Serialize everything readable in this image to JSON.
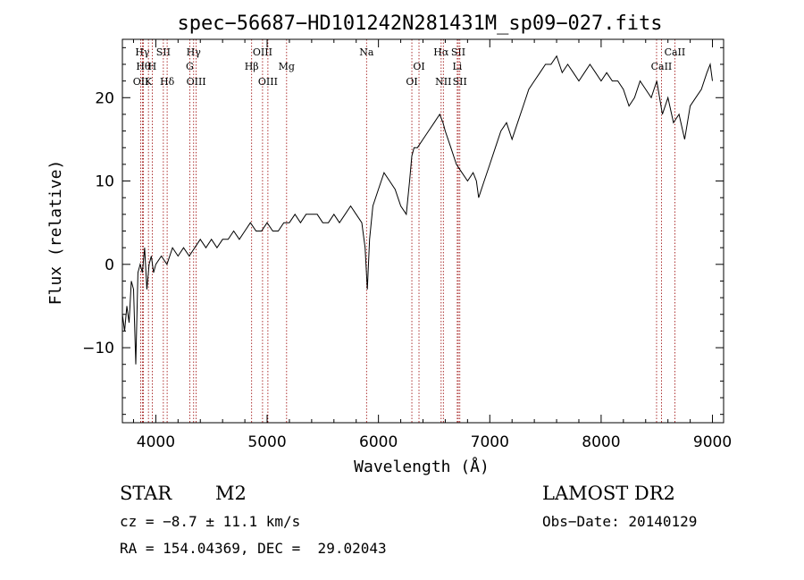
{
  "chart_data": {
    "type": "line",
    "title": "spec−56687−HD101242N281431M_sp09−027.fits",
    "xlabel": "Wavelength (Å)",
    "ylabel": "Flux (relative)",
    "xlim": [
      3700,
      9100
    ],
    "ylim": [
      -19,
      27
    ],
    "xticks": [
      4000,
      5000,
      6000,
      7000,
      8000,
      9000
    ],
    "yticks": [
      -10,
      0,
      10,
      20
    ],
    "line_color": "#000000",
    "marker_color": "#990000",
    "series": [
      {
        "x": [
          3700,
          3720,
          3740,
          3760,
          3780,
          3800,
          3820,
          3840,
          3860,
          3880,
          3900,
          3920,
          3940,
          3960,
          3980,
          4000,
          4050,
          4100,
          4150,
          4200,
          4250,
          4300,
          4350,
          4400,
          4450,
          4500,
          4550,
          4600,
          4650,
          4700,
          4750,
          4800,
          4850,
          4900,
          4950,
          5000,
          5050,
          5100,
          5150,
          5200,
          5250,
          5300,
          5350,
          5400,
          5450,
          5500,
          5550,
          5600,
          5650,
          5700,
          5750,
          5800,
          5850,
          5880,
          5900,
          5920,
          5950,
          6000,
          6050,
          6100,
          6150,
          6200,
          6250,
          6280,
          6300,
          6320,
          6350,
          6400,
          6450,
          6500,
          6550,
          6580,
          6600,
          6650,
          6700,
          6750,
          6800,
          6850,
          6880,
          6900,
          6950,
          7000,
          7050,
          7100,
          7150,
          7200,
          7250,
          7300,
          7350,
          7400,
          7450,
          7500,
          7550,
          7600,
          7650,
          7700,
          7750,
          7800,
          7850,
          7900,
          7950,
          8000,
          8050,
          8100,
          8150,
          8200,
          8250,
          8300,
          8350,
          8400,
          8450,
          8500,
          8550,
          8600,
          8650,
          8700,
          8750,
          8800,
          8850,
          8900,
          8950,
          8980,
          9000
        ],
        "y": [
          -6,
          -8,
          -5,
          -7,
          -2,
          -3,
          -12,
          -1,
          0,
          -1,
          2,
          -3,
          0,
          1,
          -1,
          0,
          1,
          0,
          2,
          1,
          2,
          1,
          2,
          3,
          2,
          3,
          2,
          3,
          3,
          4,
          3,
          4,
          5,
          4,
          4,
          5,
          4,
          4,
          5,
          5,
          6,
          5,
          6,
          6,
          6,
          5,
          5,
          6,
          5,
          6,
          7,
          6,
          5,
          2,
          -3,
          3,
          7,
          9,
          11,
          10,
          9,
          7,
          6,
          10,
          13,
          14,
          14,
          15,
          16,
          17,
          18,
          17,
          16,
          14,
          12,
          11,
          10,
          11,
          10,
          8,
          10,
          12,
          14,
          16,
          17,
          15,
          17,
          19,
          21,
          22,
          23,
          24,
          24,
          25,
          23,
          24,
          23,
          22,
          23,
          24,
          23,
          22,
          23,
          22,
          22,
          21,
          19,
          20,
          22,
          21,
          20,
          22,
          18,
          20,
          17,
          18,
          15,
          19,
          20,
          21,
          23,
          24,
          22
        ]
      }
    ],
    "line_markers": [
      {
        "label": "Hγ",
        "wl": 3880,
        "row": 1
      },
      {
        "label": "Hθ",
        "wl": 3888,
        "row": 2
      },
      {
        "label": "OII",
        "wl": 3865,
        "row": 3
      },
      {
        "label": "SII",
        "wl": 4068,
        "row": 1
      },
      {
        "label": "H",
        "wl": 3968,
        "row": 2
      },
      {
        "label": "K",
        "wl": 3934,
        "row": 3
      },
      {
        "label": "Hδ",
        "wl": 4102,
        "row": 3
      },
      {
        "label": "Hγ",
        "wl": 4340,
        "row": 1
      },
      {
        "label": "G",
        "wl": 4305,
        "row": 2
      },
      {
        "label": "OIII",
        "wl": 4363,
        "row": 3
      },
      {
        "label": "OIII",
        "wl": 4959,
        "row": 1
      },
      {
        "label": "Hβ",
        "wl": 4861,
        "row": 2
      },
      {
        "label": "OIII",
        "wl": 5007,
        "row": 3
      },
      {
        "label": "Mg",
        "wl": 5175,
        "row": 2
      },
      {
        "label": "Na",
        "wl": 5893,
        "row": 1
      },
      {
        "label": "OI",
        "wl": 6364,
        "row": 2
      },
      {
        "label": "OI",
        "wl": 6300,
        "row": 3
      },
      {
        "label": "Hα",
        "wl": 6563,
        "row": 1
      },
      {
        "label": "NII",
        "wl": 6583,
        "row": 3
      },
      {
        "label": "SII",
        "wl": 6717,
        "row": 1
      },
      {
        "label": "Li",
        "wl": 6708,
        "row": 2
      },
      {
        "label": "SII",
        "wl": 6731,
        "row": 3
      },
      {
        "label": "CaII",
        "wl": 8662,
        "row": 1
      },
      {
        "label": "CaII",
        "wl": 8542,
        "row": 2
      },
      {
        "label": "",
        "wl": 8498,
        "row": 0
      }
    ]
  },
  "info": {
    "class_label": "STAR",
    "subclass": "M2",
    "survey": "LAMOST DR2",
    "cz": "cz = −8.7 ± 11.1 km/s",
    "obs_date": "Obs−Date: 20140129",
    "coords": "RA = 154.04369, DEC =  29.02043"
  }
}
